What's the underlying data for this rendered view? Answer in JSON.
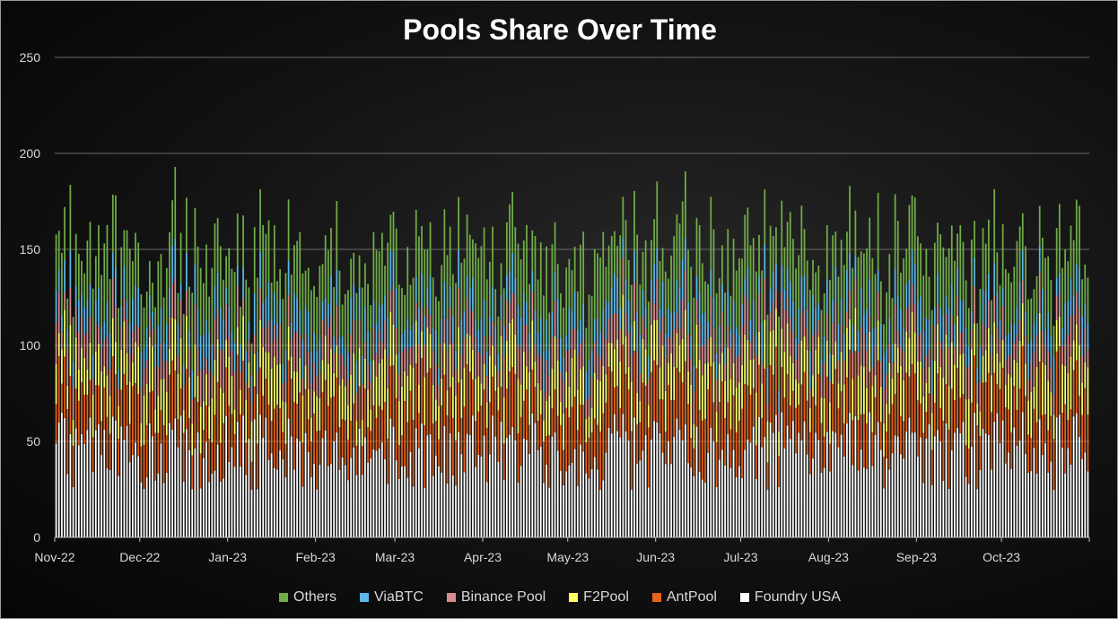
{
  "chart_data": {
    "type": "bar",
    "stacked": true,
    "title": "Pools Share Over Time",
    "xlabel": "",
    "ylabel": "",
    "ylim": [
      0,
      250
    ],
    "yticks": [
      0,
      50,
      100,
      150,
      200,
      250
    ],
    "grid": true,
    "legend_position": "bottom",
    "x_tick_labels": [
      "Nov-22",
      "Dec-22",
      "Jan-23",
      "Feb-23",
      "Mar-23",
      "Apr-23",
      "May-23",
      "Jun-23",
      "Jul-23",
      "Aug-23",
      "Sep-23",
      "Oct-23"
    ],
    "period_start": "2022-11-01",
    "period_end": "2023-10-31",
    "granularity": "daily",
    "approx_daily_means": {
      "Foundry USA": 45,
      "AntPool": 25,
      "F2Pool": 20,
      "Binance Pool": 15,
      "ViaBTC": 15,
      "Others": 28
    },
    "series": [
      {
        "name": "Others",
        "color": "#70ad47"
      },
      {
        "name": "ViaBTC",
        "color": "#5bb8e8"
      },
      {
        "name": "Binance Pool",
        "color": "#d98c8c"
      },
      {
        "name": "F2Pool",
        "color": "#ffff66"
      },
      {
        "name": "AntPool",
        "color": "#e8621a"
      },
      {
        "name": "Foundry USA",
        "color": "#ffffff"
      }
    ]
  }
}
